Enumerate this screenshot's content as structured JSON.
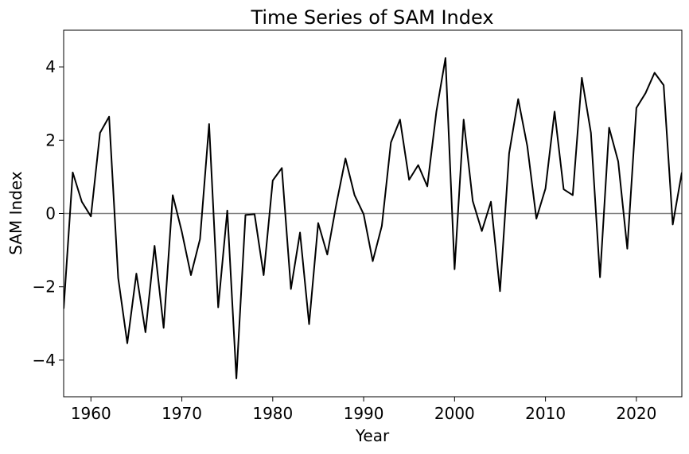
{
  "chart_data": {
    "type": "line",
    "title": "Time Series of SAM Index",
    "xlabel": "Year",
    "ylabel": "SAM Index",
    "xlim": [
      1957,
      2025
    ],
    "ylim": [
      -5,
      5
    ],
    "xticks": [
      1960,
      1970,
      1980,
      1990,
      2000,
      2010,
      2020
    ],
    "xtick_labels": [
      "1960",
      "1970",
      "1980",
      "1990",
      "2000",
      "2010",
      "2020"
    ],
    "yticks": [
      -4,
      -2,
      0,
      2,
      4
    ],
    "ytick_labels": [
      "−4",
      "−2",
      "0",
      "2",
      "4"
    ],
    "grid": false,
    "reference_line": {
      "y": 0,
      "color": "#808080"
    },
    "series": [
      {
        "color": "#000000",
        "x": [
          1957,
          1958,
          1959,
          1960,
          1961,
          1962,
          1963,
          1964,
          1965,
          1966,
          1967,
          1968,
          1969,
          1970,
          1971,
          1972,
          1973,
          1974,
          1975,
          1976,
          1977,
          1978,
          1979,
          1980,
          1981,
          1982,
          1983,
          1984,
          1985,
          1986,
          1987,
          1988,
          1989,
          1990,
          1991,
          1992,
          1993,
          1994,
          1995,
          1996,
          1997,
          1998,
          1999,
          2000,
          2001,
          2002,
          2003,
          2004,
          2005,
          2006,
          2007,
          2008,
          2009,
          2010,
          2011,
          2012,
          2013,
          2014,
          2015,
          2016,
          2017,
          2018,
          2019,
          2020,
          2021,
          2022,
          2023,
          2024,
          2025
        ],
        "values": [
          -2.6,
          1.12,
          0.32,
          -0.08,
          2.2,
          2.64,
          -1.76,
          -3.54,
          -1.64,
          -3.24,
          -0.88,
          -3.12,
          0.5,
          -0.5,
          -1.68,
          -0.7,
          2.44,
          -2.56,
          0.08,
          -4.5,
          -0.04,
          -0.02,
          -1.68,
          0.9,
          1.24,
          -2.06,
          -0.52,
          -3.02,
          -0.26,
          -1.12,
          0.26,
          1.5,
          0.5,
          -0.02,
          -1.3,
          -0.34,
          1.94,
          2.56,
          0.92,
          1.32,
          0.74,
          2.78,
          4.24,
          -1.52,
          2.56,
          0.34,
          -0.48,
          0.32,
          -2.12,
          1.64,
          3.12,
          1.84,
          -0.14,
          0.68,
          2.78,
          0.66,
          0.5,
          3.7,
          2.2,
          -1.74,
          2.34,
          1.42,
          -0.96,
          2.88,
          3.28,
          3.84,
          3.5,
          -0.3,
          1.12
        ]
      }
    ]
  }
}
